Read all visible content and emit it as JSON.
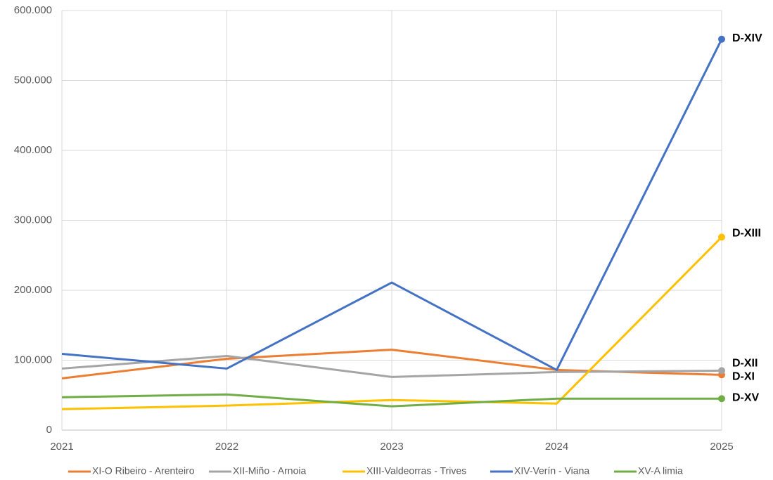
{
  "chart_data": {
    "type": "line",
    "categories": [
      "2021",
      "2022",
      "2023",
      "2024",
      "2025"
    ],
    "ylim": [
      0,
      600000
    ],
    "yticks": [
      0,
      {
        "value": 100000,
        "label": "100.000"
      },
      {
        "value": 200000,
        "label": "200.000"
      },
      {
        "value": 300000,
        "label": "300.000"
      },
      {
        "value": 400000,
        "label": "400.000"
      },
      {
        "value": 500000,
        "label": "500.000"
      },
      {
        "value": 600000,
        "label": "600.000"
      }
    ],
    "grid": true,
    "legend": "bottom",
    "series": [
      {
        "name": "XI-O Ribeiro - Arenteiro",
        "color": "#ED7D31",
        "values": [
          74000,
          102000,
          115000,
          86000,
          79000
        ],
        "end_label": "D-XI"
      },
      {
        "name": "XII-Miño - Arnoia",
        "color": "#A5A5A5",
        "values": [
          88000,
          106000,
          76000,
          83000,
          85000
        ],
        "end_label": "D-XII"
      },
      {
        "name": "XIII-Valdeorras - Trives",
        "color": "#FFC000",
        "values": [
          30000,
          35000,
          43000,
          38000,
          276000
        ],
        "end_label": "D-XIII"
      },
      {
        "name": "XIV-Verín - Viana",
        "color": "#4472C4",
        "values": [
          109000,
          88000,
          211000,
          86000,
          559000
        ],
        "end_label": "D-XIV"
      },
      {
        "name": "XV-A limia",
        "color": "#70AD47",
        "values": [
          47000,
          51000,
          34000,
          45000,
          45000
        ],
        "end_label": "D-XV"
      }
    ]
  }
}
